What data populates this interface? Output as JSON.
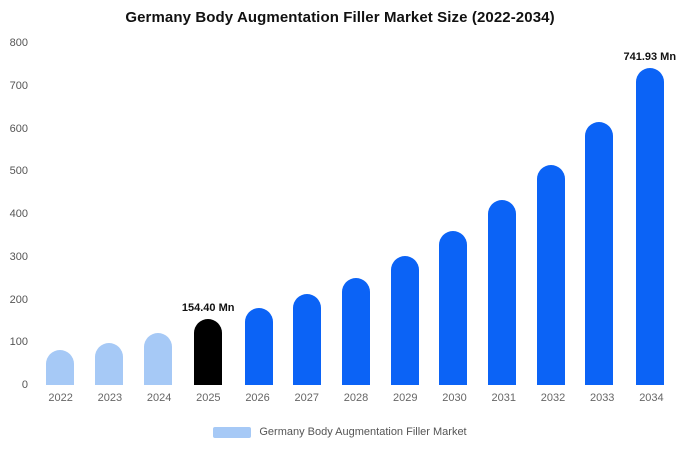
{
  "title": "Germany Body Augmentation Filler Market Size (2022-2034)",
  "legend": {
    "label": "Germany Body Augmentation Filler Market",
    "swatch_color": "#a6c9f6"
  },
  "colors": {
    "light_blue": "#a6c9f6",
    "primary_blue": "#0b63f6",
    "highlight_black": "#000000",
    "axis_text": "#666666"
  },
  "chart_data": {
    "type": "bar",
    "title": "Germany Body Augmentation Filler Market Size (2022-2034)",
    "categories": [
      "2022",
      "2023",
      "2024",
      "2025",
      "2026",
      "2027",
      "2028",
      "2029",
      "2030",
      "2031",
      "2032",
      "2033",
      "2034"
    ],
    "values": [
      82,
      98,
      122,
      154.4,
      180,
      213,
      250,
      302,
      360,
      433,
      515,
      615,
      741.93
    ],
    "bar_color_keys": [
      "light_blue",
      "light_blue",
      "light_blue",
      "highlight_black",
      "primary_blue",
      "primary_blue",
      "primary_blue",
      "primary_blue",
      "primary_blue",
      "primary_blue",
      "primary_blue",
      "primary_blue",
      "primary_blue"
    ],
    "annotations": [
      {
        "category": "2025",
        "text": "154.40 Mn"
      },
      {
        "category": "2034",
        "text": "741.93 Mn"
      }
    ],
    "xlabel": "",
    "ylabel": "",
    "ylim": [
      0,
      800
    ],
    "yticks": [
      0,
      100,
      200,
      300,
      400,
      500,
      600,
      700,
      800
    ],
    "grid": false,
    "legend_position": "bottom"
  }
}
